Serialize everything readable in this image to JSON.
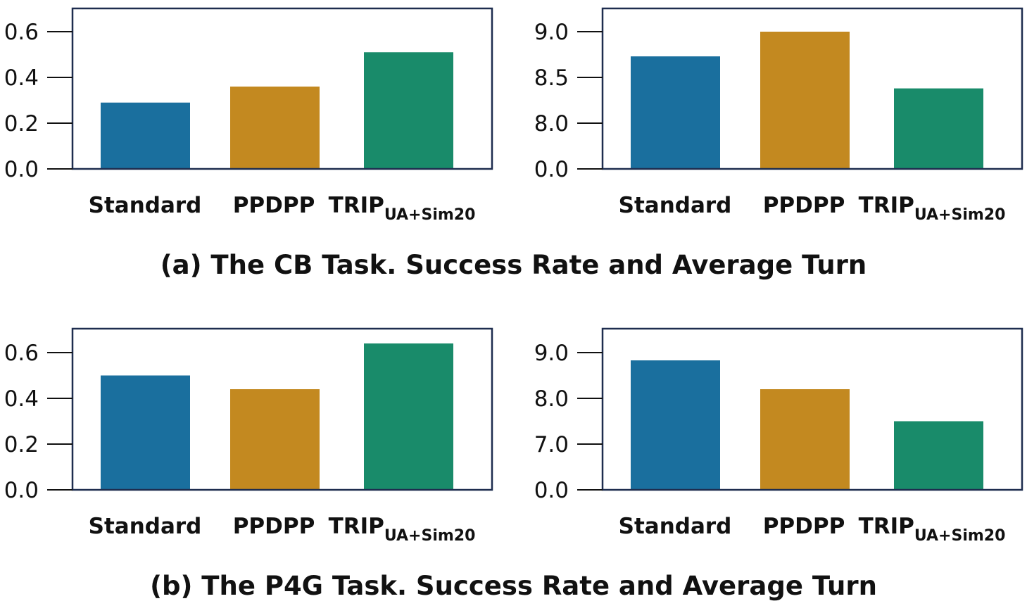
{
  "captions": {
    "a": "(a) The CB Task. Success Rate and Average Turn",
    "b": "(b) The P4G Task. Success Rate and Average Turn"
  },
  "colors": {
    "standard": "#1a6f9e",
    "ppdpp": "#c38920",
    "trip": "#198b6a",
    "frame": "#1e2d4f"
  },
  "chart_data": [
    {
      "id": "cb-success",
      "type": "bar",
      "categories": [
        "Standard",
        "PPDPP",
        "TRIP"
      ],
      "category_subscripts": [
        "",
        "",
        "UA+Sim20"
      ],
      "values": [
        0.29,
        0.36,
        0.51
      ],
      "yticks": [
        "0.0",
        "0.2",
        "0.4",
        "0.6"
      ],
      "ylim": [
        0.0,
        0.7
      ],
      "title": "",
      "xlabel": "",
      "ylabel": ""
    },
    {
      "id": "cb-turn",
      "type": "bar",
      "categories": [
        "Standard",
        "PPDPP",
        "TRIP"
      ],
      "category_subscripts": [
        "",
        "",
        "UA+Sim20"
      ],
      "values": [
        8.73,
        9.0,
        8.38
      ],
      "yticks": [
        "0.0",
        "8.0",
        "8.5",
        "9.0"
      ],
      "ylim": [
        7.5,
        9.3
      ],
      "axis_break": "lowest tick labelled 0.0 at baseline",
      "title": "",
      "xlabel": "",
      "ylabel": ""
    },
    {
      "id": "p4g-success",
      "type": "bar",
      "categories": [
        "Standard",
        "PPDPP",
        "TRIP"
      ],
      "category_subscripts": [
        "",
        "",
        "UA+Sim20"
      ],
      "values": [
        0.5,
        0.44,
        0.64
      ],
      "yticks": [
        "0.0",
        "0.2",
        "0.4",
        "0.6"
      ],
      "ylim": [
        0.0,
        0.7
      ],
      "title": "",
      "xlabel": "",
      "ylabel": ""
    },
    {
      "id": "p4g-turn",
      "type": "bar",
      "categories": [
        "Standard",
        "PPDPP",
        "TRIP"
      ],
      "category_subscripts": [
        "",
        "",
        "UA+Sim20"
      ],
      "values": [
        8.83,
        8.2,
        7.5
      ],
      "yticks": [
        "0.0",
        "7.0",
        "8.0",
        "9.0"
      ],
      "ylim": [
        6.0,
        9.5
      ],
      "axis_break": "lowest tick labelled 0.0 at baseline",
      "title": "",
      "xlabel": "",
      "ylabel": ""
    }
  ]
}
